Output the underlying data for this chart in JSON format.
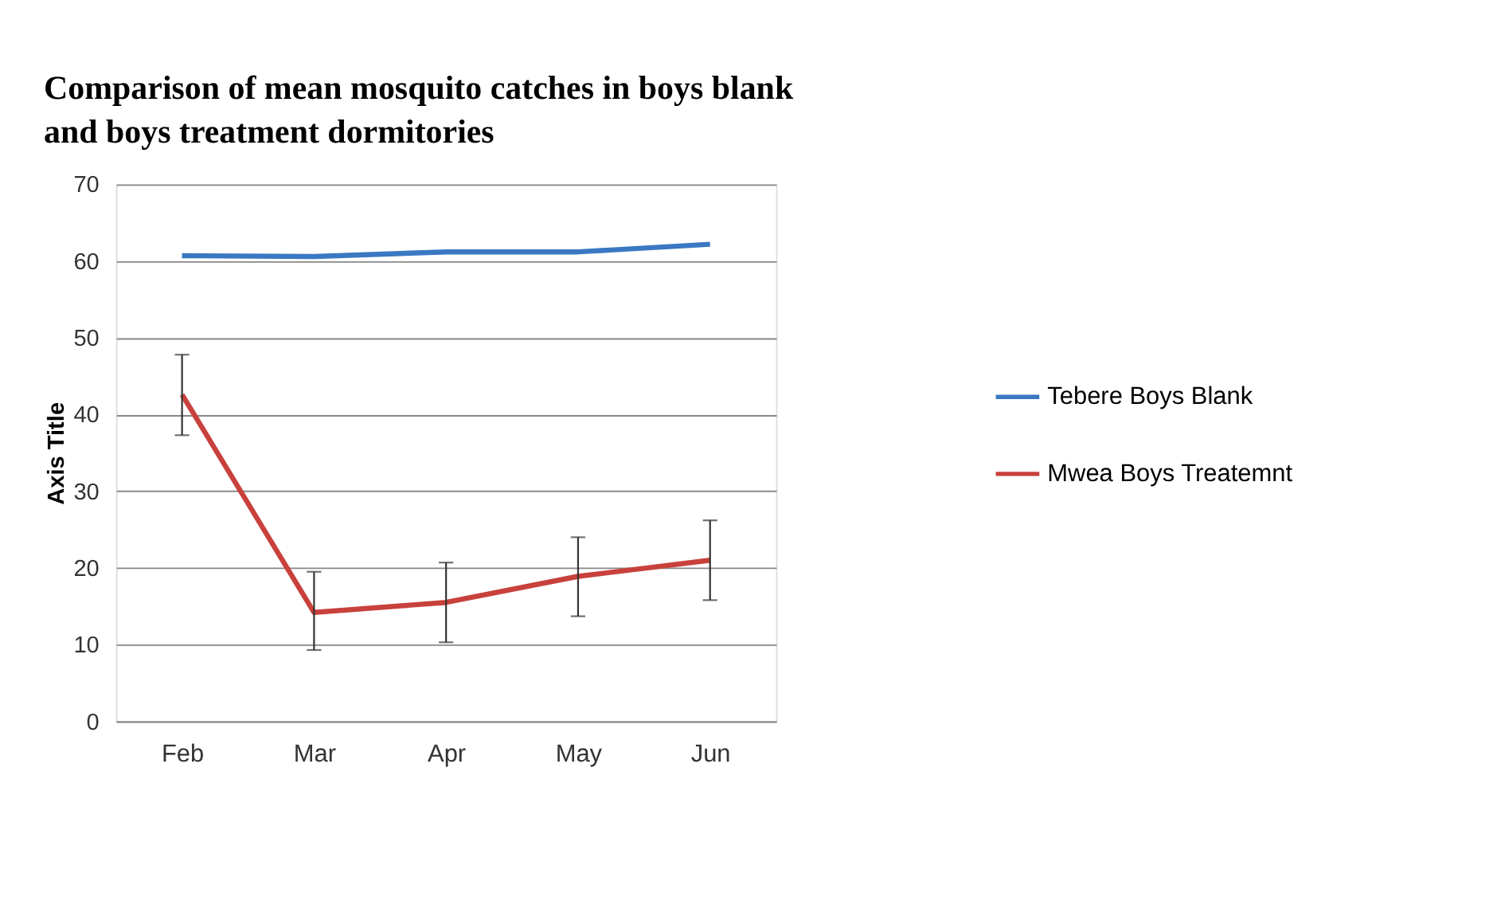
{
  "chart_data": {
    "type": "line",
    "title": "Comparison of mean mosquito catches in boys blank and boys treatment dormitories",
    "ylabel": "Axis Title",
    "categories": [
      "Feb",
      "Mar",
      "Apr",
      "May",
      "Jun"
    ],
    "series": [
      {
        "name": "Tebere Boys Blank",
        "color": "#3a78c2",
        "values": [
          60.7,
          60.6,
          61.2,
          61.2,
          62.2
        ]
      },
      {
        "name": "Mwea Boys Treatemnt",
        "color": "#c8413c",
        "values": [
          42.6,
          14.2,
          15.5,
          18.9,
          21.0
        ],
        "errors": [
          [
            37.3,
            47.8
          ],
          [
            9.3,
            19.5
          ],
          [
            10.3,
            20.7
          ],
          [
            13.7,
            24.0
          ],
          [
            15.8,
            26.2
          ]
        ]
      }
    ],
    "ylim": [
      0,
      70
    ],
    "yticks": [
      0,
      10,
      20,
      30,
      40,
      50,
      60,
      70
    ],
    "grid": "y",
    "legend": "right",
    "marker": "none",
    "line_style": "solid"
  }
}
